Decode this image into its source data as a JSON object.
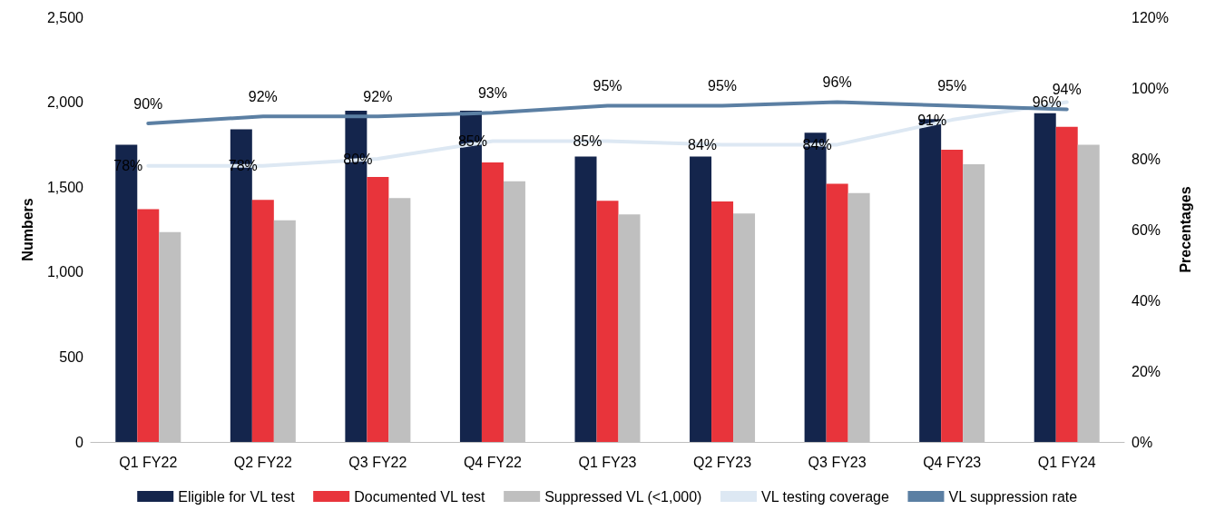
{
  "chart_data": {
    "type": "bar",
    "ylabel": "Numbers",
    "y2label": "Precentages",
    "categories": [
      "Q1 FY22",
      "Q2 FY22",
      "Q3 FY22",
      "Q4 FY22",
      "Q1 FY23",
      "Q2 FY23",
      "Q3 FY23",
      "Q4 FY23",
      "Q1 FY24"
    ],
    "series": [
      {
        "name": "Eligible for VL test",
        "color": "#14254c",
        "values": [
          1750,
          1840,
          1950,
          1950,
          1680,
          1680,
          1820,
          1900,
          1935
        ]
      },
      {
        "name": "Documented VL test",
        "color": "#e8343b",
        "values": [
          1370,
          1425,
          1560,
          1645,
          1420,
          1415,
          1520,
          1720,
          1855
        ]
      },
      {
        "name": "Suppressed VL (<1,000)",
        "color": "#bfbfbf",
        "values": [
          1235,
          1305,
          1435,
          1535,
          1340,
          1345,
          1465,
          1635,
          1750
        ]
      },
      {
        "name": "VL testing coverage",
        "type": "line",
        "axis": "y2",
        "color": "#dde8f3",
        "values": [
          78,
          78,
          80,
          85,
          85,
          84,
          84,
          91,
          96
        ],
        "value_labels": [
          "78%",
          "78%",
          "80%",
          "85%",
          "85%",
          "84%",
          "84%",
          "91%",
          "96%"
        ]
      },
      {
        "name": "VL suppression rate",
        "type": "line",
        "axis": "y2",
        "color": "#5b7fa3",
        "values": [
          90,
          92,
          92,
          93,
          95,
          95,
          96,
          95,
          94
        ],
        "value_labels": [
          "90%",
          "92%",
          "92%",
          "93%",
          "95%",
          "95%",
          "96%",
          "95%",
          "94%"
        ]
      }
    ],
    "ylim": [
      0,
      2500
    ],
    "yticks": [
      0,
      500,
      {
        "value": 1000,
        "label": "1,000"
      },
      {
        "value": 1500,
        "label": "1,500"
      },
      {
        "value": 2000,
        "label": "2,000"
      },
      {
        "value": 2500,
        "label": "2,500"
      }
    ],
    "y2lim": [
      0,
      120
    ],
    "y2ticks": [
      {
        "value": 0,
        "label": "0%"
      },
      {
        "value": 20,
        "label": "20%"
      },
      {
        "value": 40,
        "label": "40%"
      },
      {
        "value": 60,
        "label": "60%"
      },
      {
        "value": 80,
        "label": "80%"
      },
      {
        "value": 100,
        "label": "100%"
      },
      {
        "value": 120,
        "label": "120%"
      }
    ],
    "legend": "bottom",
    "grid": false,
    "marker": "none",
    "line_style": "solid"
  }
}
